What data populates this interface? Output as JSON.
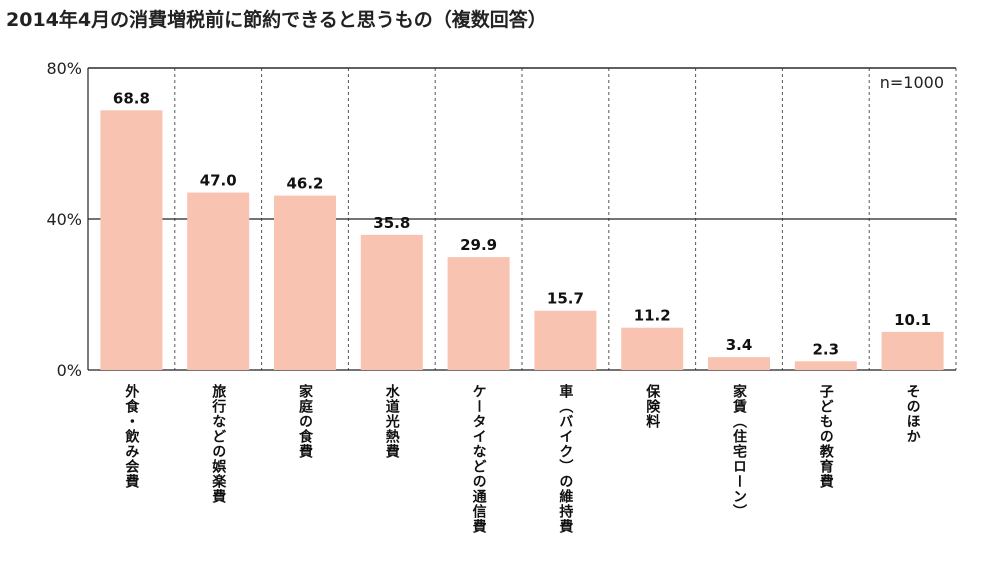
{
  "chart_data": {
    "type": "bar",
    "title": "2014年4月の消費増税前に節約できると思うもの（複数回答）",
    "note": "n=1000",
    "categories": [
      "外食・飲み会費",
      "旅行などの娯楽費",
      "家庭の食費",
      "水道光熱費",
      "ケータイなどの通信費",
      "車（バイク）の維持費",
      "保険料",
      "家賃（住宅ローン）",
      "子どもの教育費",
      "そのほか"
    ],
    "values": [
      68.8,
      47.0,
      46.2,
      35.8,
      29.9,
      15.7,
      11.2,
      3.4,
      2.3,
      10.1
    ],
    "value_labels": [
      "68.8",
      "47.0",
      "46.2",
      "35.8",
      "29.9",
      "15.7",
      "11.2",
      "3.4",
      "2.3",
      "10.1"
    ],
    "ylim": [
      0,
      80
    ],
    "yticks": [
      0,
      40,
      80
    ],
    "ytick_labels": [
      "0%",
      "40%",
      "80%"
    ],
    "xlabel": "",
    "ylabel": "",
    "grid": true,
    "bar_color": "#f8c3b0"
  }
}
